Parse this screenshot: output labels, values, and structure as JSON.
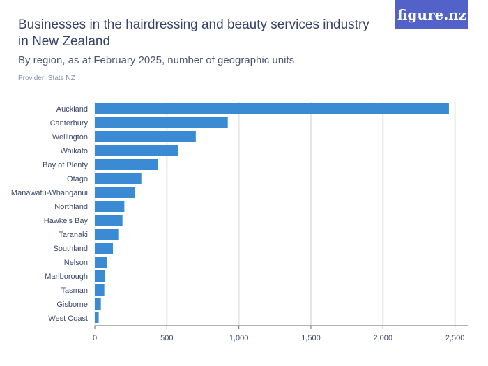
{
  "header": {
    "title": "Businesses in the hairdressing and beauty services industry in New Zealand",
    "subtitle": "By region, as at February 2025, number of geographic units",
    "provider": "Provider: Stats NZ",
    "logo": "figure.nz"
  },
  "colors": {
    "bar": "#3a8ad4",
    "logo_bg": "#5362c9",
    "grid": "#e6e6e6"
  },
  "chart_data": {
    "type": "bar",
    "orientation": "horizontal",
    "categories": [
      "Auckland",
      "Canterbury",
      "Wellington",
      "Waikato",
      "Bay of Plenty",
      "Otago",
      "Manawatū-Whanganui",
      "Northland",
      "Hawke's Bay",
      "Taranaki",
      "Southland",
      "Nelson",
      "Marlborough",
      "Tasman",
      "Gisborne",
      "West Coast"
    ],
    "values": [
      2458,
      923,
      701,
      579,
      439,
      323,
      276,
      205,
      192,
      163,
      126,
      86,
      69,
      66,
      42,
      27
    ],
    "xlim": [
      0,
      2500
    ],
    "xticks": [
      0,
      500,
      1000,
      1500,
      2000,
      2500
    ],
    "xtick_labels": [
      "0",
      "500",
      "1,000",
      "1,500",
      "2,000",
      "2,500"
    ],
    "grid": true
  }
}
